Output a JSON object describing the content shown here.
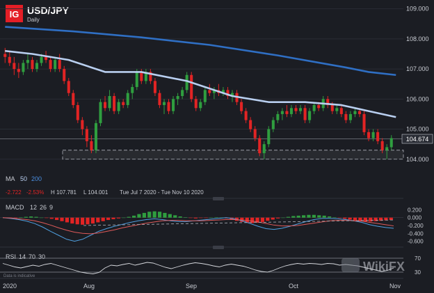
{
  "header": {
    "logo_text": "IG",
    "symbol": "USD/JPY",
    "timeframe": "Daily",
    "brand_color": "#e41e26"
  },
  "price_label": "104.674",
  "ma_legend": {
    "title": "MA",
    "p1": "50",
    "p2": "200",
    "color1": "#b9cff0",
    "color2": "#2f6fc4"
  },
  "stats": {
    "change": "-2.722",
    "change_pct": "-2.53%",
    "high": "H 107.781",
    "low": "L 104.001",
    "range": "Tue Jul 7 2020 - Tue Nov 10 2020"
  },
  "macd_legend": {
    "title": "MACD",
    "fast": "12",
    "slow": "26",
    "signal": "9"
  },
  "rsi_legend": {
    "title": "RSI",
    "period": "14",
    "upper": "70",
    "lower": "30"
  },
  "footnote": "Data is indicative",
  "watermark": "WikiFX",
  "colors": {
    "up": "#2f9e3f",
    "down": "#e22424",
    "bg": "#1b1d23",
    "grid": "#2a2d35",
    "macd": "#4fa0e0",
    "signal": "#e05a5a"
  },
  "chart_data": [
    {
      "type": "candlestick",
      "title": "USD/JPY",
      "yticks": [
        104.0,
        105.0,
        106.0,
        107.0,
        108.0,
        109.0
      ],
      "ytick_labels": [
        "104.000",
        "105.000",
        "106.000",
        "107.000",
        "108.000",
        "109.000"
      ],
      "ylim": [
        103.0,
        109.2
      ],
      "x_labels": [
        "2020",
        "Aug",
        "Sep",
        "Oct",
        "Nov"
      ],
      "last_price": 104.674,
      "support_zone": [
        104.0,
        104.3
      ],
      "ohlc": [
        [
          107.5,
          107.7,
          107.2,
          107.4
        ],
        [
          107.4,
          107.6,
          107.1,
          107.2
        ],
        [
          107.2,
          107.4,
          106.8,
          107.0
        ],
        [
          107.0,
          107.2,
          106.7,
          106.9
        ],
        [
          106.9,
          107.3,
          106.8,
          107.2
        ],
        [
          107.2,
          107.5,
          107.0,
          107.3
        ],
        [
          107.3,
          107.4,
          106.9,
          107.0
        ],
        [
          107.0,
          107.3,
          106.9,
          107.2
        ],
        [
          107.2,
          107.5,
          107.1,
          107.4
        ],
        [
          107.4,
          107.6,
          107.2,
          107.3
        ],
        [
          107.3,
          107.4,
          106.9,
          107.0
        ],
        [
          107.0,
          107.4,
          106.9,
          107.3
        ],
        [
          107.3,
          107.5,
          106.9,
          107.0
        ],
        [
          107.0,
          107.1,
          106.5,
          106.6
        ],
        [
          106.6,
          106.7,
          106.1,
          106.2
        ],
        [
          106.2,
          106.3,
          105.7,
          105.8
        ],
        [
          105.8,
          105.9,
          105.2,
          105.3
        ],
        [
          105.3,
          105.4,
          104.8,
          105.0
        ],
        [
          105.0,
          105.1,
          104.4,
          104.6
        ],
        [
          104.6,
          104.8,
          104.2,
          104.3
        ],
        [
          104.3,
          105.3,
          104.2,
          105.2
        ],
        [
          105.2,
          106.0,
          105.1,
          105.9
        ],
        [
          105.9,
          106.1,
          105.6,
          105.7
        ],
        [
          105.7,
          106.3,
          105.6,
          106.1
        ],
        [
          106.1,
          106.2,
          105.5,
          105.6
        ],
        [
          105.6,
          106.0,
          105.5,
          105.9
        ],
        [
          105.9,
          106.0,
          105.7,
          105.8
        ],
        [
          105.8,
          106.3,
          105.7,
          106.2
        ],
        [
          106.2,
          106.5,
          106.0,
          106.4
        ],
        [
          106.4,
          107.0,
          106.3,
          106.9
        ],
        [
          106.9,
          107.0,
          106.5,
          106.6
        ],
        [
          106.6,
          107.0,
          106.5,
          106.9
        ],
        [
          106.9,
          107.0,
          106.5,
          106.6
        ],
        [
          106.6,
          106.7,
          106.1,
          106.2
        ],
        [
          106.2,
          106.3,
          105.7,
          105.8
        ],
        [
          105.8,
          106.0,
          105.5,
          105.9
        ],
        [
          105.9,
          106.0,
          105.5,
          105.6
        ],
        [
          105.6,
          106.1,
          105.5,
          106.0
        ],
        [
          106.0,
          106.2,
          105.8,
          106.1
        ],
        [
          106.1,
          106.4,
          106.0,
          106.3
        ],
        [
          106.3,
          106.9,
          106.2,
          106.8
        ],
        [
          106.8,
          106.9,
          105.9,
          106.0
        ],
        [
          106.0,
          106.1,
          105.6,
          105.7
        ],
        [
          105.7,
          106.0,
          105.6,
          105.9
        ],
        [
          105.9,
          106.4,
          105.8,
          106.3
        ],
        [
          106.3,
          106.5,
          106.1,
          106.2
        ],
        [
          106.2,
          106.4,
          106.0,
          106.3
        ],
        [
          106.3,
          106.5,
          106.1,
          106.2
        ],
        [
          106.2,
          106.4,
          106.1,
          106.3
        ],
        [
          106.3,
          106.4,
          106.0,
          106.1
        ],
        [
          106.1,
          106.3,
          105.9,
          106.2
        ],
        [
          106.2,
          106.3,
          105.8,
          105.9
        ],
        [
          105.9,
          106.0,
          105.5,
          105.6
        ],
        [
          105.6,
          105.7,
          105.2,
          105.3
        ],
        [
          105.3,
          105.4,
          104.9,
          105.0
        ],
        [
          105.0,
          105.1,
          104.6,
          104.7
        ],
        [
          104.7,
          104.8,
          104.1,
          104.2
        ],
        [
          104.2,
          104.6,
          104.0,
          104.5
        ],
        [
          104.5,
          105.1,
          104.4,
          105.0
        ],
        [
          105.0,
          105.4,
          104.9,
          105.3
        ],
        [
          105.3,
          105.6,
          105.2,
          105.5
        ],
        [
          105.5,
          105.7,
          105.3,
          105.6
        ],
        [
          105.6,
          105.8,
          105.4,
          105.5
        ],
        [
          105.5,
          105.8,
          105.4,
          105.7
        ],
        [
          105.7,
          105.8,
          105.5,
          105.6
        ],
        [
          105.6,
          105.8,
          105.5,
          105.7
        ],
        [
          105.7,
          105.8,
          105.2,
          105.3
        ],
        [
          105.3,
          105.7,
          105.2,
          105.6
        ],
        [
          105.6,
          105.9,
          105.5,
          105.8
        ],
        [
          105.8,
          105.9,
          105.6,
          105.7
        ],
        [
          105.7,
          106.1,
          105.6,
          106.0
        ],
        [
          106.0,
          106.1,
          105.7,
          105.8
        ],
        [
          105.8,
          105.9,
          105.5,
          105.6
        ],
        [
          105.6,
          105.8,
          105.5,
          105.7
        ],
        [
          105.7,
          105.8,
          105.4,
          105.5
        ],
        [
          105.5,
          105.6,
          105.2,
          105.3
        ],
        [
          105.3,
          105.6,
          105.2,
          105.5
        ],
        [
          105.5,
          105.7,
          105.4,
          105.6
        ],
        [
          105.6,
          105.7,
          105.4,
          105.5
        ],
        [
          105.5,
          105.6,
          104.8,
          104.9
        ],
        [
          104.9,
          105.0,
          104.6,
          104.7
        ],
        [
          104.7,
          105.0,
          104.6,
          104.9
        ],
        [
          104.9,
          105.0,
          104.5,
          104.6
        ],
        [
          104.6,
          104.7,
          104.2,
          104.3
        ],
        [
          104.3,
          104.5,
          104.0,
          104.4
        ],
        [
          104.4,
          104.8,
          104.3,
          104.7
        ]
      ],
      "series": [
        {
          "name": "50",
          "values_sparse": [
            [
              0,
              107.6
            ],
            [
              6,
              107.5
            ],
            [
              14,
              107.3
            ],
            [
              22,
              106.9
            ],
            [
              30,
              106.9
            ],
            [
              40,
              106.6
            ],
            [
              50,
              106.1
            ],
            [
              58,
              105.9
            ],
            [
              66,
              105.9
            ],
            [
              74,
              105.8
            ],
            [
              80,
              105.6
            ],
            [
              86,
              105.4
            ]
          ]
        },
        {
          "name": "200",
          "values_sparse": [
            [
              0,
              108.4
            ],
            [
              15,
              108.25
            ],
            [
              30,
              108.05
            ],
            [
              45,
              107.8
            ],
            [
              60,
              107.45
            ],
            [
              75,
              107.05
            ],
            [
              80,
              106.9
            ],
            [
              86,
              106.8
            ]
          ]
        }
      ]
    },
    {
      "type": "bar+line",
      "title": "MACD 12 26 9",
      "yticks": [
        0.2,
        0.0,
        -0.2,
        -0.4,
        -0.6
      ],
      "ytick_labels": [
        "0.200",
        "0.000",
        "-0.200",
        "-0.400",
        "-0.600"
      ],
      "ylim": [
        -0.66,
        0.26
      ],
      "histogram": [
        0.0,
        -0.02,
        -0.01,
        0.01,
        0.02,
        0.03,
        0.02,
        0.0,
        -0.01,
        -0.03,
        -0.06,
        -0.09,
        -0.12,
        -0.15,
        -0.17,
        -0.18,
        -0.17,
        -0.15,
        -0.12,
        -0.09,
        -0.06,
        -0.04,
        -0.02,
        0.0,
        0.02,
        0.05,
        0.09,
        0.12,
        0.15,
        0.16,
        0.15,
        0.12,
        0.09,
        0.06,
        0.03,
        0.01,
        -0.01,
        -0.02,
        -0.01,
        -0.01,
        0.0,
        0.01,
        0.0,
        -0.02,
        -0.05,
        -0.08,
        -0.11,
        -0.13,
        -0.14,
        -0.13,
        -0.11,
        -0.08,
        -0.05,
        -0.02,
        0.0,
        0.02,
        0.04,
        0.05,
        0.06,
        0.07,
        0.07,
        0.06,
        0.05,
        0.03,
        0.01,
        -0.01,
        -0.03,
        -0.05,
        -0.07,
        -0.09,
        -0.1,
        -0.1,
        -0.09,
        -0.08,
        -0.07,
        -0.06
      ],
      "macd_line": [
        0.0,
        -0.02,
        -0.05,
        -0.09,
        -0.15,
        -0.24,
        -0.35,
        -0.45,
        -0.55,
        -0.6,
        -0.55,
        -0.45,
        -0.35,
        -0.28,
        -0.22,
        -0.17,
        -0.12,
        -0.08,
        -0.05,
        -0.03,
        -0.05,
        -0.08,
        -0.1,
        -0.1,
        -0.08,
        -0.06,
        -0.04,
        -0.02,
        0.0,
        -0.03,
        -0.08,
        -0.15,
        -0.22,
        -0.28,
        -0.3,
        -0.27,
        -0.22,
        -0.16,
        -0.1,
        -0.05,
        -0.02,
        -0.02,
        -0.03,
        -0.05,
        -0.08,
        -0.12,
        -0.18,
        -0.22,
        -0.25,
        -0.27
      ],
      "signal_line": [
        0.0,
        -0.01,
        -0.03,
        -0.05,
        -0.08,
        -0.13,
        -0.19,
        -0.26,
        -0.32,
        -0.37,
        -0.4,
        -0.41,
        -0.39,
        -0.35,
        -0.31,
        -0.26,
        -0.22,
        -0.18,
        -0.14,
        -0.11,
        -0.08,
        -0.07,
        -0.07,
        -0.08,
        -0.08,
        -0.08,
        -0.07,
        -0.06,
        -0.05,
        -0.05,
        -0.06,
        -0.08,
        -0.11,
        -0.15,
        -0.19,
        -0.21,
        -0.21,
        -0.2,
        -0.17,
        -0.14,
        -0.11,
        -0.08,
        -0.07,
        -0.07,
        -0.08,
        -0.09,
        -0.12,
        -0.15,
        -0.18,
        -0.21
      ]
    },
    {
      "type": "line",
      "title": "RSI 14 70 30",
      "yticks": [
        70,
        30
      ],
      "ytick_labels": [
        "70",
        "30"
      ],
      "ylim": [
        20,
        80
      ],
      "values": [
        55,
        50,
        45,
        42,
        46,
        50,
        47,
        52,
        55,
        50,
        45,
        40,
        35,
        30,
        27,
        25,
        29,
        42,
        50,
        48,
        52,
        55,
        50,
        54,
        58,
        56,
        50,
        44,
        40,
        45,
        50,
        54,
        57,
        55,
        52,
        48,
        45,
        50,
        53,
        50,
        47,
        42,
        36,
        32,
        30,
        35,
        42,
        48,
        52,
        55,
        53,
        55,
        54,
        52,
        55,
        54,
        50,
        52,
        50,
        48,
        44,
        40,
        36,
        32,
        35,
        42
      ]
    }
  ]
}
